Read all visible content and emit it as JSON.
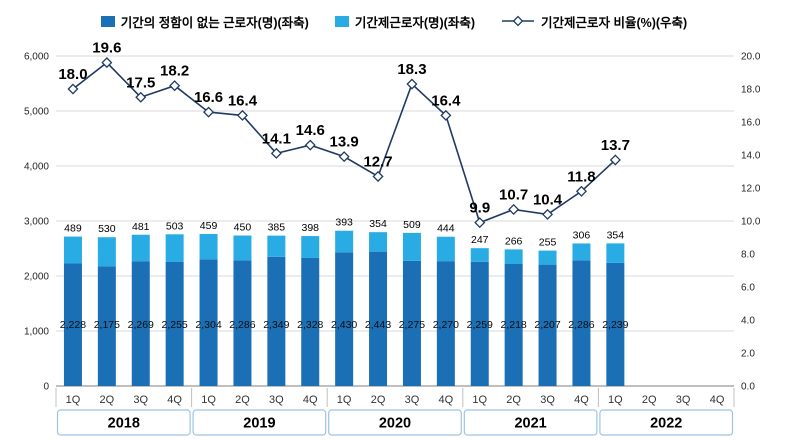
{
  "legend": [
    {
      "label": "기간의 정함이 없는 근로자(명)(좌축)",
      "color": "#1a6fb5",
      "type": "bar"
    },
    {
      "label": "기간제근로자(명)(좌축)",
      "color": "#29ace3",
      "type": "bar"
    },
    {
      "label": "기간제근로자 비율(%)(우축)",
      "color": "#203a64",
      "type": "line"
    }
  ],
  "chart_data": {
    "type": "bar",
    "subtype": "stacked-bars-with-line-combo",
    "categories": [
      "2018-1Q",
      "2018-2Q",
      "2018-3Q",
      "2018-4Q",
      "2019-1Q",
      "2019-2Q",
      "2019-3Q",
      "2019-4Q",
      "2020-1Q",
      "2020-2Q",
      "2020-3Q",
      "2020-4Q",
      "2021-1Q",
      "2021-2Q",
      "2021-3Q",
      "2021-4Q",
      "2022-1Q",
      "2022-2Q",
      "2022-3Q",
      "2022-4Q"
    ],
    "quarter_labels": [
      "1Q",
      "2Q",
      "3Q",
      "4Q"
    ],
    "year_labels": [
      "2018",
      "2019",
      "2020",
      "2021",
      "2022"
    ],
    "series": [
      {
        "name": "기간의 정함이 없는 근로자(명)",
        "type": "bar",
        "axis": "left",
        "color": "#1a6fb5",
        "values": [
          2228,
          2175,
          2269,
          2255,
          2304,
          2286,
          2349,
          2328,
          2430,
          2443,
          2275,
          2270,
          2259,
          2218,
          2207,
          2286,
          2239,
          null,
          null,
          null
        ]
      },
      {
        "name": "기간제근로자(명)",
        "type": "bar",
        "axis": "left",
        "color": "#29ace3",
        "values": [
          489,
          530,
          481,
          503,
          459,
          450,
          385,
          398,
          393,
          354,
          509,
          444,
          247,
          266,
          255,
          306,
          354,
          null,
          null,
          null
        ]
      },
      {
        "name": "기간제근로자 비율(%)",
        "type": "line",
        "axis": "right",
        "color": "#203a64",
        "values": [
          18.0,
          19.6,
          17.5,
          18.2,
          16.6,
          16.4,
          14.1,
          14.6,
          13.9,
          12.7,
          18.3,
          16.4,
          9.9,
          10.7,
          10.4,
          11.8,
          13.7,
          null,
          null,
          null
        ]
      }
    ],
    "left_axis": {
      "min": 0,
      "max": 6000,
      "step": 1000,
      "tick_labels": [
        "0",
        "1,000",
        "2,000",
        "3,000",
        "4,000",
        "5,000",
        "6,000"
      ]
    },
    "right_axis": {
      "min": 0,
      "max": 20,
      "step": 2,
      "tick_labels": [
        "0.0",
        "2.0",
        "4.0",
        "6.0",
        "8.0",
        "10.0",
        "12.0",
        "14.0",
        "16.0",
        "18.0",
        "20.0"
      ]
    },
    "grid": true,
    "legend_position": "top"
  },
  "style": {
    "grid_color": "#d9d9d9",
    "axis_color": "#7f7f7f",
    "tick_text_color": "#262626",
    "year_box_border": "#9dc3e6"
  }
}
